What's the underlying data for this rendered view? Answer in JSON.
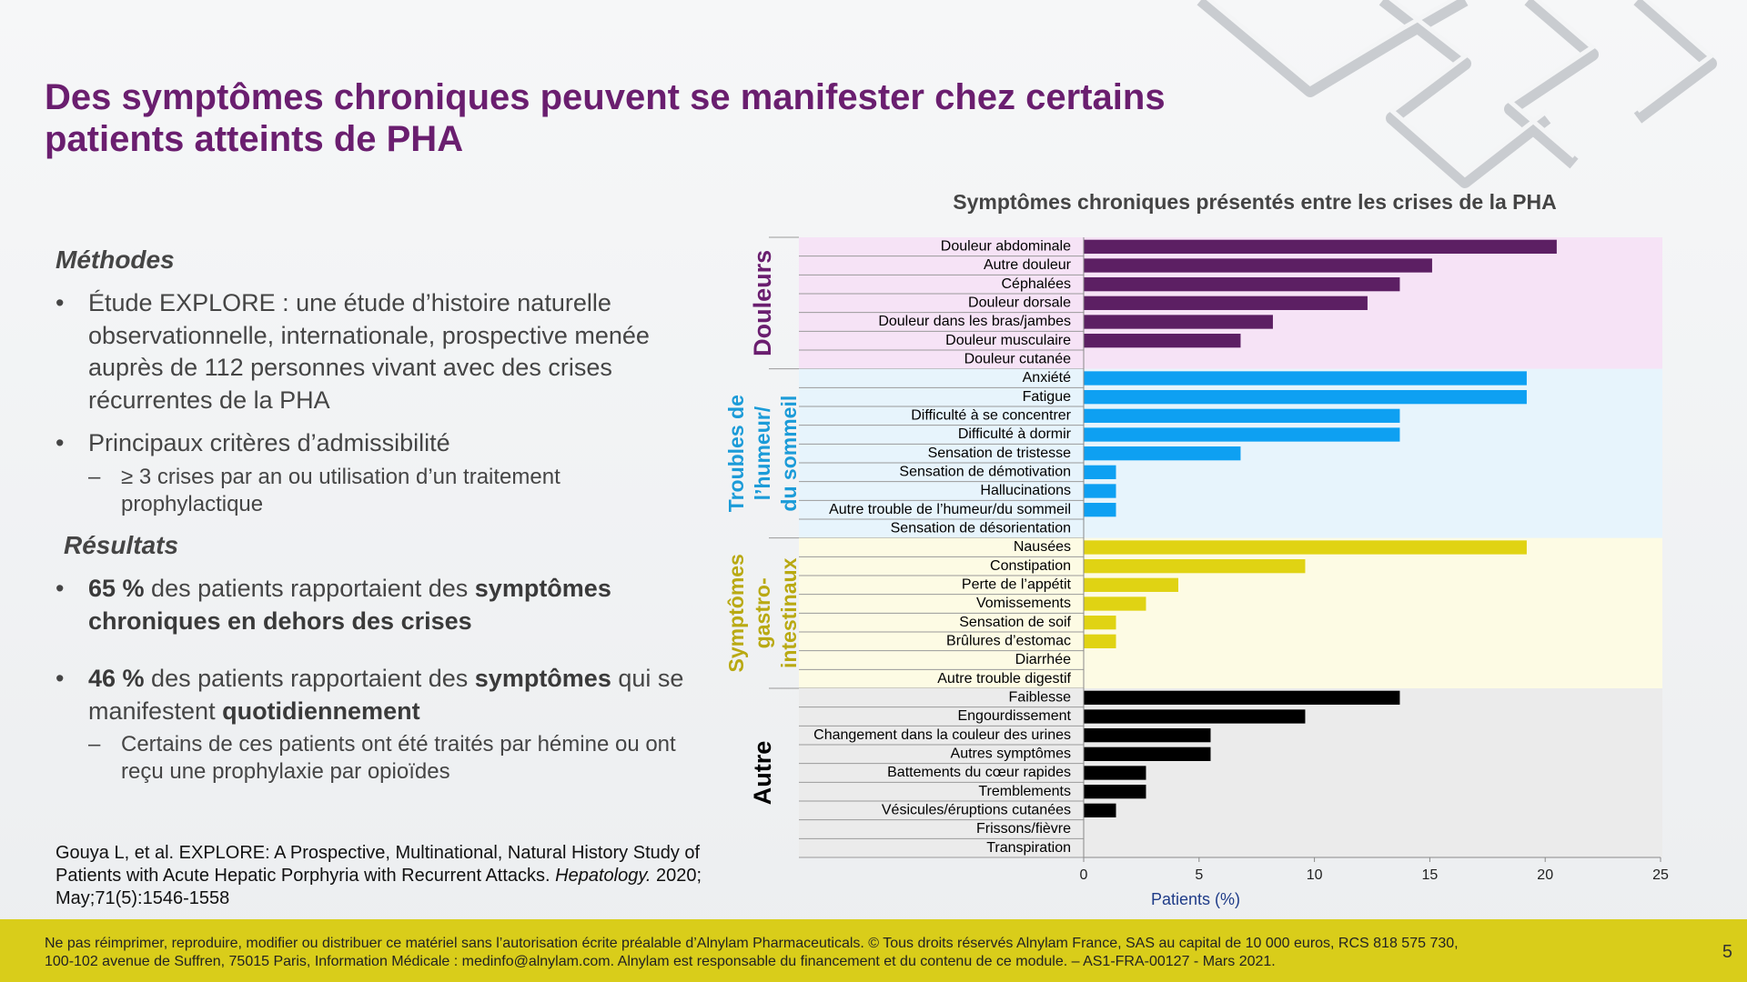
{
  "title_lines": [
    "Des symptômes chroniques peuvent se manifester chez certains",
    "patients atteints de PHA"
  ],
  "methods": {
    "heading": "Méthodes",
    "items": [
      {
        "text": "Étude EXPLORE : une étude d’histoire naturelle observationnelle, internationale, prospective menée auprès de 112 personnes vivant avec des crises récurrentes de la PHA"
      },
      {
        "text": "Principaux critères d’admissibilité",
        "sub": [
          "≥ 3 crises par an ou utilisation d’un traitement prophylactique"
        ]
      }
    ]
  },
  "results": {
    "heading": "Résultats",
    "items": [
      {
        "runs": [
          "65 %",
          " des patients rapportaient des ",
          "symptômes chroniques en dehors des crises"
        ]
      },
      {
        "runs": [
          "46 %",
          " des patients rapportaient des ",
          "symptômes",
          " qui se manifestent ",
          "quotidiennement"
        ],
        "sub": [
          "Certains de ces patients ont été traités par hémine ou ont reçu une prophylaxie par opioïdes"
        ]
      }
    ]
  },
  "reference": [
    "Gouya L, et al. EXPLORE: A Prospective, Multinational, Natural History Study of Patients with Acute Hepatic Porphyria with Recurrent Attacks. ",
    "Hepatology.",
    " 2020; May;71(5):1546-1558"
  ],
  "footer": [
    "Ne pas réimprimer, reproduire, modifier ou distribuer ce matériel sans l’autorisation écrite préalable d’Alnylam Pharmaceuticals. © Tous droits réservés Alnylam France, SAS au capital de 10 000 euros, RCS 818 575 730,",
    "100-102 avenue de Suffren, 75015 Paris, Information Médicale : medinfo@alnylam.com. Alnylam est responsable du financement et du contenu de ce module. – AS1-FRA-00127 - Mars 2021."
  ],
  "page_number": "5",
  "chart_data": {
    "type": "bar",
    "orientation": "horizontal",
    "title": "Symptômes chroniques présentés entre les crises de la PHA",
    "xlabel": "Patients (%)",
    "xlim": [
      0,
      25
    ],
    "xticks": [
      0,
      5,
      10,
      15,
      20,
      25
    ],
    "groups": [
      {
        "label_lines": [
          "Douleurs"
        ],
        "label_color": "#6a1e6f",
        "color": "#5c1f63",
        "band_color": "#f6e3f6",
        "categories": [
          "Douleur abdominale",
          "Autre douleur",
          "Céphalées",
          "Douleur dorsale",
          "Douleur dans les bras/jambes",
          "Douleur musculaire",
          "Douleur cutanée"
        ],
        "values": [
          20.5,
          15.1,
          13.7,
          12.3,
          8.2,
          6.8,
          0
        ]
      },
      {
        "label_lines": [
          "Troubles de",
          "l’humeur/",
          "du sommeil"
        ],
        "label_color": "#1b9bd8",
        "color": "#0ea0f2",
        "band_color": "#e7f4fc",
        "categories": [
          "Anxiété",
          "Fatigue",
          "Difficulté à se concentrer",
          "Difficulté à dormir",
          "Sensation de tristesse",
          "Sensation de démotivation",
          "Hallucinations",
          "Autre trouble de l’humeur/du sommeil",
          "Sensation de désorientation"
        ],
        "values": [
          19.2,
          19.2,
          13.7,
          13.7,
          6.8,
          1.4,
          1.4,
          1.4,
          0
        ]
      },
      {
        "label_lines": [
          "Symptômes",
          "gastro-",
          "intestinaux"
        ],
        "label_color": "#b9a912",
        "color": "#e0d313",
        "band_color": "#fdfbe4",
        "categories": [
          "Nausées",
          "Constipation",
          "Perte de l’appétit",
          "Vomissements",
          "Sensation de soif",
          "Brûlures d’estomac",
          "Diarrhée",
          "Autre trouble digestif"
        ],
        "values": [
          19.2,
          9.6,
          4.1,
          2.7,
          1.4,
          1.4,
          0,
          0
        ]
      },
      {
        "label_lines": [
          "Autre"
        ],
        "label_color": "#000000",
        "color": "#000000",
        "band_color": "#ebebeb",
        "categories": [
          "Faiblesse",
          "Engourdissement",
          "Changement dans la couleur des urines",
          "Autres symptômes",
          "Battements du cœur rapides",
          "Tremblements",
          "Vésicules/éruptions cutanées",
          "Frissons/fièvre",
          "Transpiration"
        ],
        "values": [
          13.7,
          9.6,
          5.5,
          5.5,
          2.7,
          2.7,
          1.4,
          0,
          0
        ]
      }
    ]
  }
}
